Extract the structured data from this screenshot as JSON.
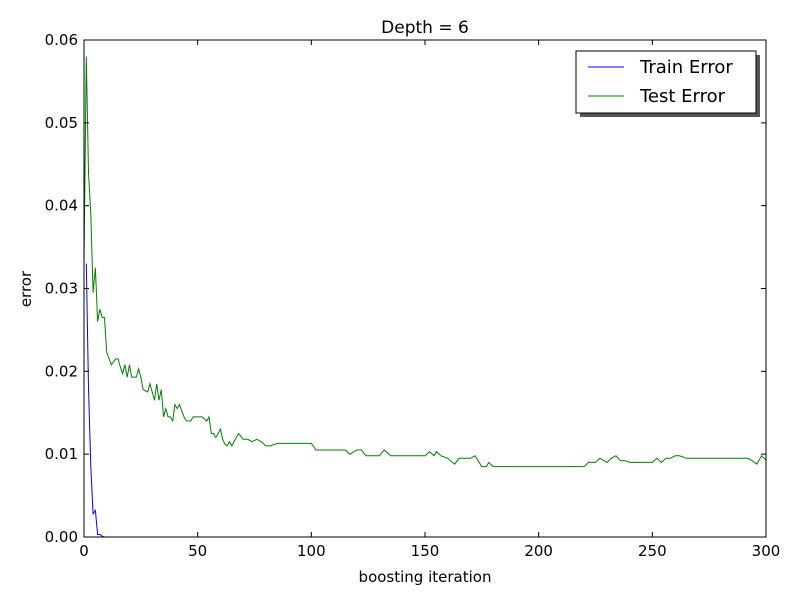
{
  "chart_data": {
    "type": "line",
    "title": "Depth = 6",
    "xlabel": "boosting iteration",
    "ylabel": "error",
    "xlim": [
      0,
      300
    ],
    "ylim": [
      0,
      0.06
    ],
    "xticks": [
      "0",
      "50",
      "100",
      "150",
      "200",
      "250",
      "300"
    ],
    "yticks": [
      "0.00",
      "0.01",
      "0.02",
      "0.03",
      "0.04",
      "0.05",
      "0.06"
    ],
    "legend_position": "top-right",
    "grid": false,
    "series": [
      {
        "name": "Train Error",
        "color": "#0000ff",
        "x": [
          1,
          2,
          3,
          4,
          5,
          6,
          7,
          8,
          9,
          10,
          20,
          50,
          100,
          150,
          200,
          250,
          300
        ],
        "y": [
          0.033,
          0.018,
          0.0085,
          0.0028,
          0.0032,
          0.0003,
          0.0003,
          0.0001,
          0.0,
          0.0,
          0.0,
          0.0,
          0.0,
          0.0,
          0.0,
          0.0,
          0.0
        ]
      },
      {
        "name": "Test Error",
        "color": "#008000",
        "x": [
          0,
          1,
          2,
          3,
          4,
          5,
          6,
          7,
          8,
          9,
          10,
          12,
          14,
          15,
          16,
          17,
          18,
          19,
          20,
          21,
          22,
          23,
          24,
          25,
          26,
          28,
          29,
          30,
          31,
          32,
          33,
          34,
          35,
          36,
          37,
          38,
          39,
          40,
          41,
          42,
          43,
          44,
          45,
          46,
          47,
          48,
          50,
          52,
          54,
          55,
          56,
          57,
          58,
          60,
          61,
          62,
          63,
          64,
          65,
          66,
          68,
          70,
          72,
          74,
          76,
          78,
          80,
          82,
          85,
          88,
          90,
          95,
          100,
          102,
          105,
          110,
          115,
          117,
          120,
          122,
          124,
          126,
          130,
          132,
          135,
          140,
          145,
          150,
          152,
          154,
          155,
          157,
          160,
          163,
          165,
          168,
          170,
          172,
          175,
          177,
          178,
          180,
          185,
          190,
          195,
          200,
          205,
          210,
          215,
          220,
          222,
          225,
          227,
          230,
          232,
          234,
          236,
          238,
          240,
          245,
          248,
          250,
          252,
          254,
          256,
          258,
          260,
          262,
          265,
          270,
          275,
          280,
          285,
          290,
          292,
          294,
          296,
          298,
          300
        ],
        "y": [
          0.033,
          0.058,
          0.044,
          0.039,
          0.0295,
          0.0325,
          0.026,
          0.0275,
          0.0265,
          0.0265,
          0.0223,
          0.0208,
          0.0215,
          0.0215,
          0.0205,
          0.0197,
          0.0208,
          0.0193,
          0.0208,
          0.0193,
          0.0193,
          0.0193,
          0.0203,
          0.0193,
          0.0178,
          0.0175,
          0.0185,
          0.0175,
          0.0165,
          0.0185,
          0.0165,
          0.0178,
          0.0145,
          0.0155,
          0.0145,
          0.0145,
          0.014,
          0.016,
          0.0155,
          0.016,
          0.0152,
          0.0145,
          0.014,
          0.014,
          0.014,
          0.0145,
          0.0145,
          0.0145,
          0.014,
          0.0145,
          0.0125,
          0.0125,
          0.012,
          0.013,
          0.0118,
          0.0112,
          0.011,
          0.0115,
          0.011,
          0.0115,
          0.0125,
          0.0118,
          0.0118,
          0.0115,
          0.0118,
          0.0115,
          0.011,
          0.011,
          0.0113,
          0.0113,
          0.0113,
          0.0113,
          0.0113,
          0.0105,
          0.0105,
          0.0105,
          0.0105,
          0.01,
          0.0105,
          0.0105,
          0.0098,
          0.0098,
          0.0098,
          0.0105,
          0.0098,
          0.0098,
          0.0098,
          0.0098,
          0.0103,
          0.0098,
          0.0103,
          0.0098,
          0.0095,
          0.0088,
          0.0095,
          0.0095,
          0.0095,
          0.0098,
          0.0085,
          0.0085,
          0.009,
          0.0085,
          0.0085,
          0.0085,
          0.0085,
          0.0085,
          0.0085,
          0.0085,
          0.0085,
          0.0085,
          0.009,
          0.009,
          0.0095,
          0.009,
          0.0095,
          0.0098,
          0.0092,
          0.0092,
          0.009,
          0.009,
          0.009,
          0.009,
          0.0095,
          0.009,
          0.0095,
          0.0095,
          0.0098,
          0.0098,
          0.0095,
          0.0095,
          0.0095,
          0.0095,
          0.0095,
          0.0095,
          0.0095,
          0.0092,
          0.0088,
          0.0098,
          0.0093
        ]
      }
    ]
  }
}
